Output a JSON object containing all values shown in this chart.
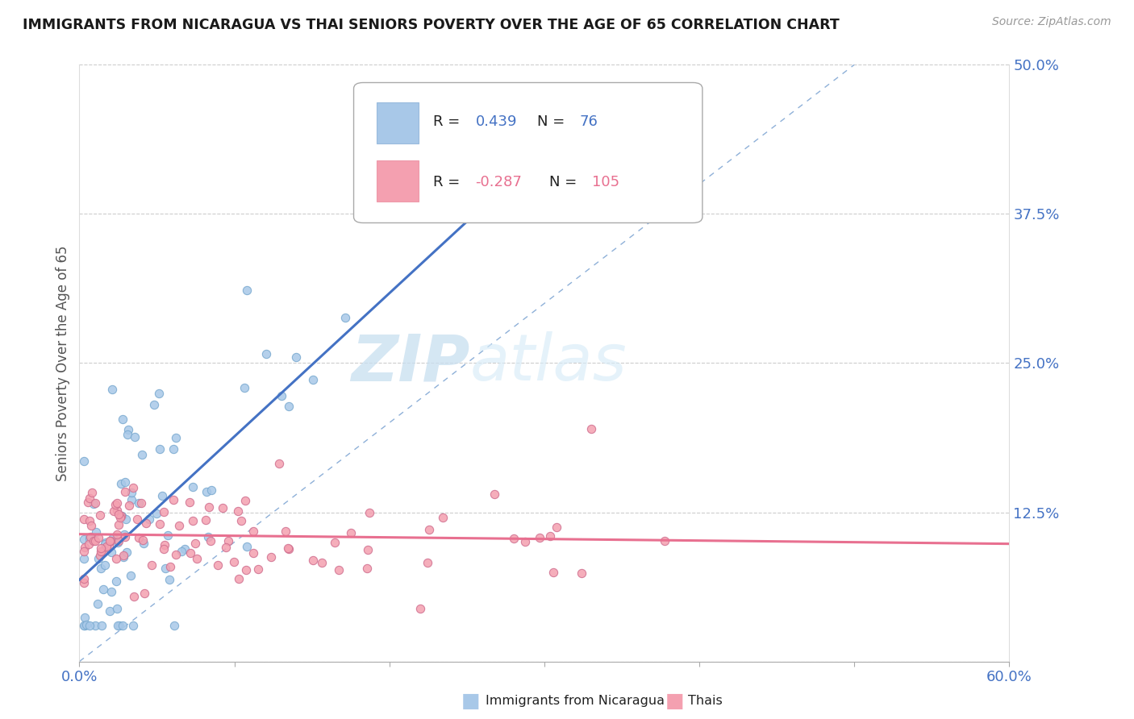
{
  "title": "IMMIGRANTS FROM NICARAGUA VS THAI SENIORS POVERTY OVER THE AGE OF 65 CORRELATION CHART",
  "source": "Source: ZipAtlas.com",
  "ylabel": "Seniors Poverty Over the Age of 65",
  "xlim": [
    0.0,
    0.6
  ],
  "ylim": [
    0.0,
    0.5
  ],
  "xticks": [
    0.0,
    0.1,
    0.2,
    0.3,
    0.4,
    0.5,
    0.6
  ],
  "yticks": [
    0.0,
    0.125,
    0.25,
    0.375,
    0.5
  ],
  "color_nicaragua": "#A8C8E8",
  "color_thai": "#F4A0B0",
  "line_color_nicaragua": "#4472C4",
  "line_color_thai": "#E87090",
  "ref_line_color": "#8EB0D8",
  "watermark_zip": "ZIP",
  "watermark_atlas": "atlas",
  "background_color": "#FFFFFF",
  "tick_label_color": "#4472C4",
  "title_color": "#1A1A1A",
  "axis_label_color": "#555555"
}
